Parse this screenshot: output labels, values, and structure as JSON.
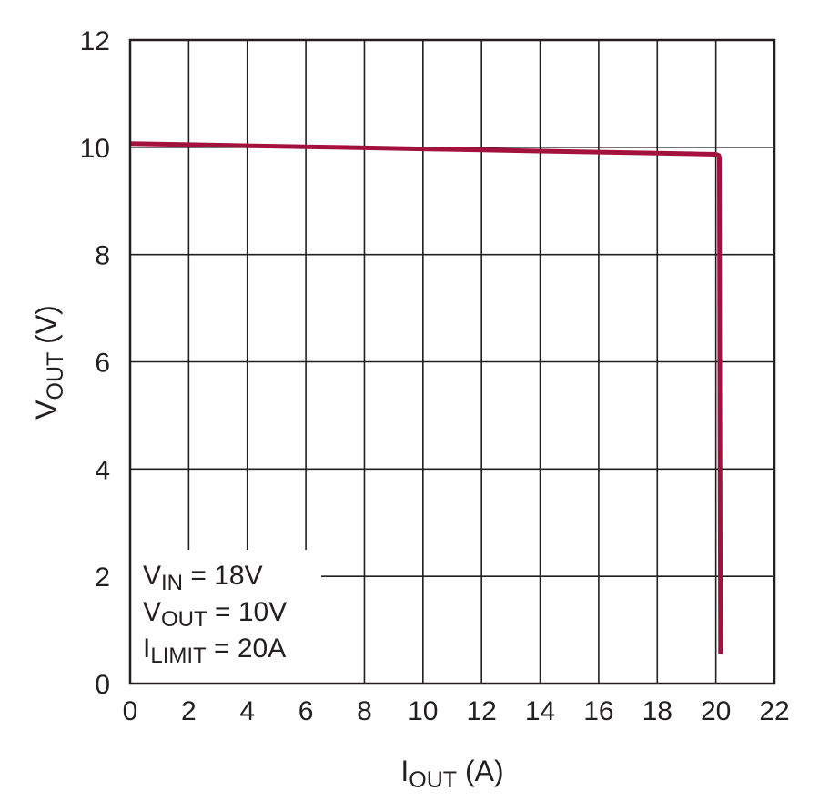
{
  "chart_data": {
    "type": "line",
    "xlabel": {
      "main": "I",
      "sub": "OUT",
      "rest": " (A)"
    },
    "ylabel": {
      "main": "V",
      "sub": "OUT",
      "rest": " (V)"
    },
    "xlim": [
      0,
      22
    ],
    "ylim": [
      0,
      12
    ],
    "x_ticks": [
      "0",
      "2",
      "4",
      "6",
      "8",
      "10",
      "12",
      "14",
      "16",
      "18",
      "20",
      "22"
    ],
    "y_ticks": [
      "0",
      "2",
      "4",
      "6",
      "8",
      "10",
      "12"
    ],
    "grid": true,
    "series": [
      {
        "color": "#a3123f",
        "x": [
          0,
          2,
          4,
          6,
          8,
          10,
          12,
          14,
          16,
          18,
          20.0,
          20.1,
          20.12,
          20.14,
          20.16
        ],
        "y": [
          10.07,
          10.05,
          10.03,
          10.01,
          9.99,
          9.97,
          9.95,
          9.93,
          9.91,
          9.89,
          9.87,
          9.85,
          9.8,
          5.0,
          0.55
        ]
      }
    ],
    "annotations": [
      {
        "main": "V",
        "sub": "IN",
        "rest": " = 18V"
      },
      {
        "main": "V",
        "sub": "OUT",
        "rest": " = 10V"
      },
      {
        "main": "I",
        "sub": "LIMIT",
        "rest": " = 20A"
      }
    ]
  }
}
